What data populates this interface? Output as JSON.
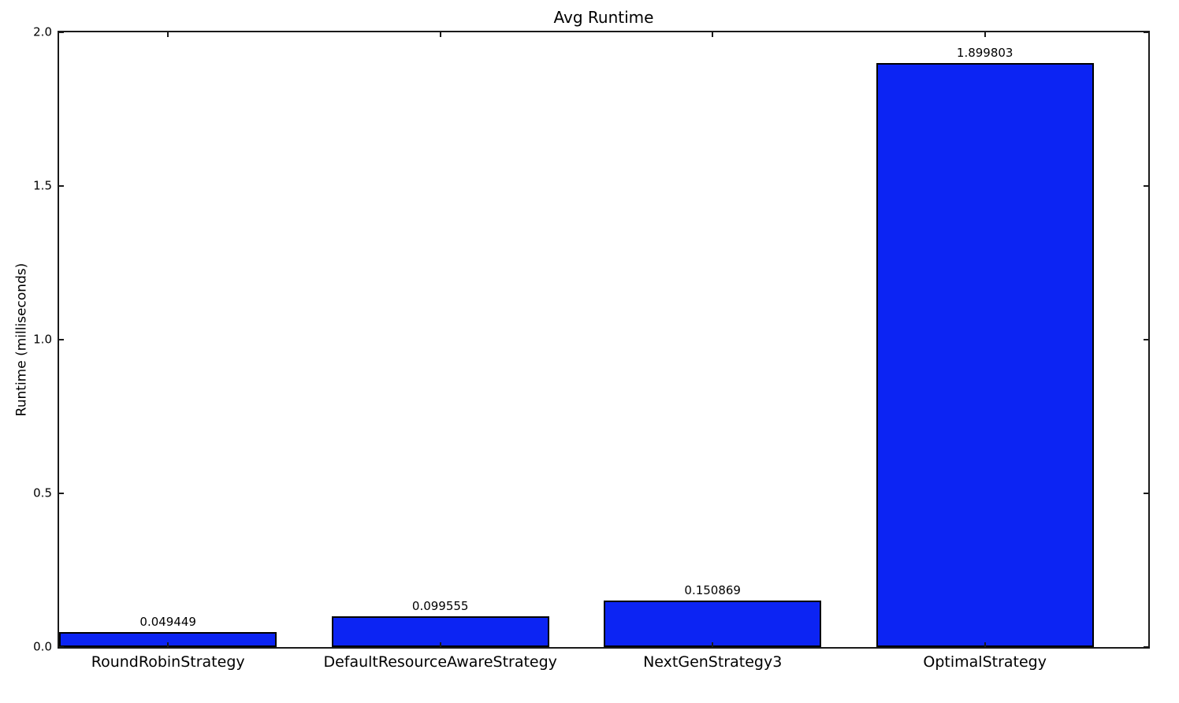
{
  "figure": {
    "background": "#ffffff"
  },
  "chart_data": {
    "type": "bar",
    "title": "Avg Runtime",
    "xlabel": "",
    "ylabel": "Runtime (milliseconds)",
    "categories": [
      "RoundRobinStrategy",
      "DefaultResourceAwareStrategy",
      "NextGenStrategy3",
      "OptimalStrategy"
    ],
    "values": [
      0.049449,
      0.099555,
      0.150869,
      1.899803
    ],
    "bar_value_labels": [
      "0.049449",
      "0.099555",
      "0.150869",
      "1.899803"
    ],
    "yticks": [
      "0.0",
      "0.5",
      "1.0",
      "1.5",
      "2.0"
    ],
    "ylim": [
      0.0,
      2.0
    ],
    "bar_width_fraction": 0.8,
    "grid": false,
    "legend": "none",
    "bar_color": "#0c24f3",
    "bar_edge_color": "#000000",
    "axis_color": "#1a1a1a",
    "text_color": "#000000"
  }
}
